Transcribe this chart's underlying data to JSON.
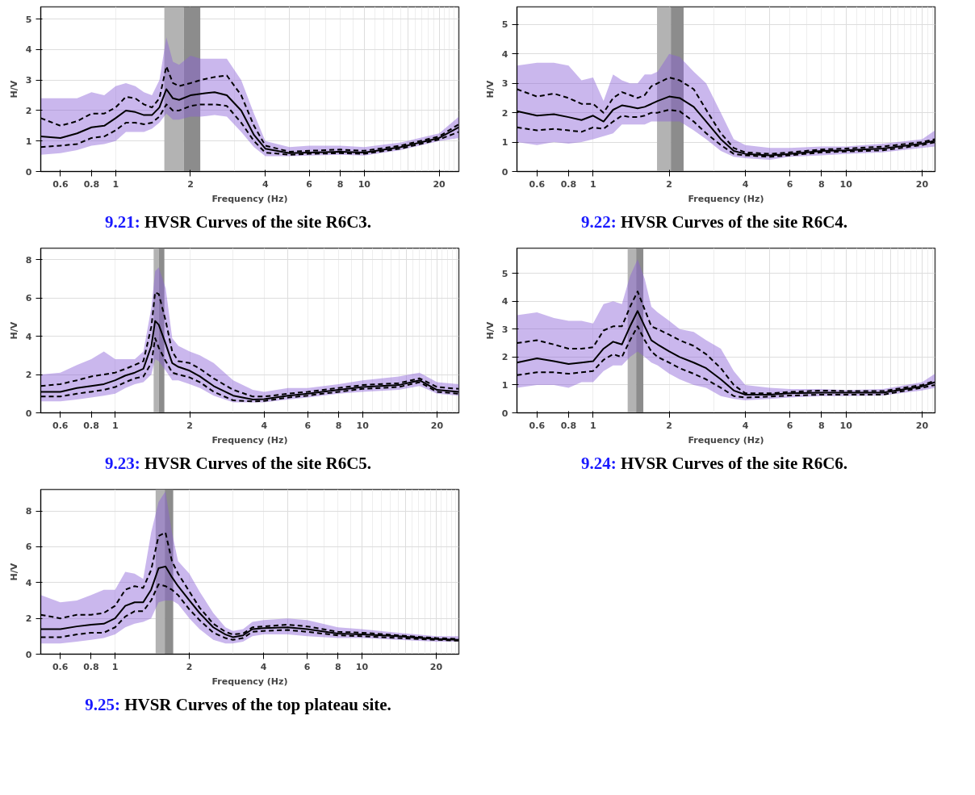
{
  "chart_data": [
    {
      "type": "line",
      "title": "9.21: HVSR Curves of the site R6C3.",
      "xlabel": "Frequency (Hz)",
      "ylabel": "H/V",
      "log": "x",
      "grid": true,
      "xlim": [
        0.5,
        24
      ],
      "ylim": [
        0,
        5.4
      ],
      "xticks": [
        0.6,
        0.8,
        1,
        2,
        4,
        6,
        8,
        10,
        20
      ],
      "yticks": [
        0,
        1,
        2,
        3,
        4,
        5
      ],
      "x": [
        0.5,
        0.6,
        0.7,
        0.8,
        0.9,
        1,
        1.1,
        1.2,
        1.3,
        1.4,
        1.5,
        1.6,
        1.7,
        1.8,
        2,
        2.2,
        2.5,
        2.8,
        3.2,
        3.6,
        4,
        5,
        6,
        8,
        10,
        14,
        20,
        24
      ],
      "bands": [
        {
          "axis": "x",
          "from": 1.57,
          "to": 1.88,
          "color": "#b3b3b3"
        },
        {
          "axis": "x",
          "from": 1.88,
          "to": 2.19,
          "color": "#8c8c8c"
        }
      ],
      "series": [
        {
          "color": "#000000",
          "line_style": "solid",
          "values": [
            1.15,
            1.1,
            1.25,
            1.45,
            1.5,
            1.75,
            2.0,
            1.95,
            1.85,
            1.85,
            2.1,
            2.7,
            2.4,
            2.35,
            2.5,
            2.55,
            2.6,
            2.5,
            2.0,
            1.2,
            0.75,
            0.6,
            0.62,
            0.65,
            0.62,
            0.8,
            1.1,
            1.45
          ],
          "lower": [
            0.55,
            0.6,
            0.7,
            0.85,
            0.9,
            1.0,
            1.3,
            1.3,
            1.3,
            1.4,
            1.6,
            1.9,
            1.7,
            1.7,
            1.8,
            1.8,
            1.85,
            1.8,
            1.3,
            0.8,
            0.5,
            0.5,
            0.52,
            0.55,
            0.52,
            0.7,
            1.0,
            1.1
          ],
          "upper": [
            2.4,
            2.4,
            2.4,
            2.6,
            2.5,
            2.8,
            2.9,
            2.8,
            2.6,
            2.5,
            3.0,
            4.4,
            3.6,
            3.5,
            3.8,
            3.7,
            3.7,
            3.7,
            3.0,
            1.9,
            1.0,
            0.8,
            0.85,
            0.85,
            0.8,
            0.95,
            1.25,
            1.8
          ]
        },
        {
          "color": "#000000",
          "line_style": "dashed",
          "values": [
            1.75,
            1.5,
            1.65,
            1.9,
            1.9,
            2.1,
            2.45,
            2.4,
            2.2,
            2.1,
            2.4,
            3.45,
            2.9,
            2.8,
            2.9,
            3.0,
            3.1,
            3.15,
            2.5,
            1.5,
            0.85,
            0.65,
            0.68,
            0.72,
            0.68,
            0.85,
            1.15,
            1.55
          ]
        },
        {
          "color": "#000000",
          "line_style": "dashed",
          "values": [
            0.8,
            0.85,
            0.9,
            1.1,
            1.15,
            1.35,
            1.6,
            1.6,
            1.55,
            1.6,
            1.8,
            2.2,
            2.0,
            2.0,
            2.15,
            2.2,
            2.2,
            2.15,
            1.6,
            1.0,
            0.62,
            0.55,
            0.58,
            0.6,
            0.58,
            0.75,
            1.05,
            1.3
          ]
        }
      ]
    },
    {
      "type": "line",
      "title": "9.22: HVSR Curves of the site R6C4.",
      "xlabel": "Frequency (Hz)",
      "ylabel": "H/V",
      "log": "x",
      "grid": true,
      "xlim": [
        0.5,
        22.5
      ],
      "ylim": [
        0,
        5.6
      ],
      "xticks": [
        0.6,
        0.8,
        1,
        2,
        4,
        6,
        8,
        10,
        20
      ],
      "yticks": [
        0,
        1,
        2,
        3,
        4,
        5
      ],
      "x": [
        0.5,
        0.6,
        0.7,
        0.8,
        0.9,
        1,
        1.1,
        1.2,
        1.3,
        1.4,
        1.5,
        1.6,
        1.7,
        1.8,
        2,
        2.2,
        2.5,
        2.8,
        3.2,
        3.6,
        4,
        5,
        6,
        8,
        10,
        14,
        20,
        22.5
      ],
      "bands": [
        {
          "axis": "x",
          "from": 1.79,
          "to": 2.03,
          "color": "#b3b3b3"
        },
        {
          "axis": "x",
          "from": 2.03,
          "to": 2.28,
          "color": "#8c8c8c"
        }
      ],
      "series": [
        {
          "color": "#000000",
          "line_style": "solid",
          "values": [
            2.05,
            1.9,
            1.95,
            1.85,
            1.75,
            1.9,
            1.7,
            2.1,
            2.25,
            2.2,
            2.15,
            2.2,
            2.3,
            2.4,
            2.55,
            2.5,
            2.2,
            1.7,
            1.1,
            0.7,
            0.6,
            0.55,
            0.6,
            0.7,
            0.72,
            0.78,
            0.95,
            1.05
          ],
          "lower": [
            1.0,
            0.9,
            1.0,
            0.95,
            1.0,
            1.1,
            1.2,
            1.3,
            1.6,
            1.6,
            1.6,
            1.6,
            1.7,
            1.7,
            1.7,
            1.7,
            1.4,
            1.1,
            0.7,
            0.5,
            0.45,
            0.4,
            0.5,
            0.55,
            0.6,
            0.65,
            0.8,
            0.85
          ],
          "upper": [
            3.6,
            3.7,
            3.7,
            3.6,
            3.1,
            3.2,
            2.4,
            3.3,
            3.1,
            3.0,
            3.0,
            3.3,
            3.3,
            3.4,
            4.0,
            3.9,
            3.4,
            3.0,
            2.0,
            1.1,
            0.9,
            0.8,
            0.8,
            0.85,
            0.85,
            0.95,
            1.1,
            1.4
          ]
        },
        {
          "color": "#000000",
          "line_style": "dashed",
          "values": [
            2.8,
            2.55,
            2.65,
            2.5,
            2.3,
            2.3,
            2.0,
            2.5,
            2.7,
            2.6,
            2.5,
            2.6,
            2.9,
            3.0,
            3.2,
            3.1,
            2.8,
            2.1,
            1.3,
            0.8,
            0.65,
            0.6,
            0.65,
            0.75,
            0.78,
            0.85,
            1.0,
            1.1
          ]
        },
        {
          "color": "#000000",
          "line_style": "dashed",
          "values": [
            1.5,
            1.4,
            1.45,
            1.4,
            1.35,
            1.5,
            1.45,
            1.7,
            1.9,
            1.85,
            1.85,
            1.9,
            2.0,
            2.0,
            2.1,
            2.05,
            1.7,
            1.3,
            0.9,
            0.6,
            0.55,
            0.5,
            0.55,
            0.65,
            0.68,
            0.72,
            0.9,
            1.0
          ]
        }
      ]
    },
    {
      "type": "line",
      "title": "9.23: HVSR Curves of the site R6C5.",
      "xlabel": "Frequency (Hz)",
      "ylabel": "H/V",
      "log": "x",
      "grid": true,
      "xlim": [
        0.5,
        24.5
      ],
      "ylim": [
        0,
        8.6
      ],
      "xticks": [
        0.6,
        0.8,
        1,
        2,
        4,
        6,
        8,
        10,
        20
      ],
      "yticks": [
        0,
        2,
        4,
        6,
        8
      ],
      "x": [
        0.5,
        0.6,
        0.7,
        0.8,
        0.9,
        1,
        1.1,
        1.2,
        1.3,
        1.4,
        1.45,
        1.5,
        1.6,
        1.7,
        1.8,
        2,
        2.2,
        2.5,
        3,
        3.6,
        4,
        5,
        6,
        8,
        10,
        14,
        17,
        20,
        24.5
      ],
      "bands": [
        {
          "axis": "x",
          "from": 1.43,
          "to": 1.5,
          "color": "#b3b3b3"
        },
        {
          "axis": "x",
          "from": 1.5,
          "to": 1.58,
          "color": "#8c8c8c"
        }
      ],
      "series": [
        {
          "color": "#000000",
          "line_style": "solid",
          "values": [
            1.1,
            1.1,
            1.3,
            1.4,
            1.5,
            1.7,
            1.95,
            2.1,
            2.3,
            3.5,
            4.8,
            4.6,
            3.6,
            2.6,
            2.4,
            2.2,
            1.9,
            1.4,
            0.9,
            0.7,
            0.72,
            0.9,
            1.0,
            1.2,
            1.35,
            1.45,
            1.7,
            1.2,
            1.1
          ],
          "lower": [
            0.6,
            0.6,
            0.7,
            0.8,
            0.9,
            1.0,
            1.3,
            1.5,
            1.6,
            2.0,
            2.8,
            2.7,
            2.2,
            1.7,
            1.7,
            1.5,
            1.3,
            0.9,
            0.55,
            0.55,
            0.55,
            0.7,
            0.8,
            1.0,
            1.1,
            1.2,
            1.4,
            1.0,
            0.9
          ],
          "upper": [
            2.0,
            2.1,
            2.5,
            2.8,
            3.2,
            2.8,
            2.8,
            2.8,
            3.2,
            5.5,
            7.4,
            7.6,
            6.5,
            3.9,
            3.5,
            3.2,
            3.0,
            2.6,
            1.7,
            1.2,
            1.1,
            1.3,
            1.3,
            1.5,
            1.7,
            1.9,
            2.1,
            1.6,
            1.5
          ]
        },
        {
          "color": "#000000",
          "line_style": "dashed",
          "values": [
            1.4,
            1.5,
            1.7,
            1.9,
            2.0,
            2.1,
            2.3,
            2.5,
            2.7,
            4.5,
            6.3,
            6.2,
            4.8,
            3.2,
            2.7,
            2.6,
            2.3,
            1.8,
            1.2,
            0.85,
            0.85,
            1.0,
            1.1,
            1.3,
            1.45,
            1.55,
            1.8,
            1.35,
            1.25
          ]
        },
        {
          "color": "#000000",
          "line_style": "dashed",
          "values": [
            0.85,
            0.85,
            1.0,
            1.1,
            1.2,
            1.35,
            1.6,
            1.8,
            1.9,
            2.6,
            3.9,
            3.4,
            2.7,
            2.1,
            2.0,
            1.85,
            1.6,
            1.1,
            0.65,
            0.6,
            0.62,
            0.8,
            0.9,
            1.1,
            1.25,
            1.35,
            1.6,
            1.1,
            1.0
          ]
        }
      ]
    },
    {
      "type": "line",
      "title": "9.24: HVSR Curves of the site R6C6.",
      "xlabel": "Frequency (Hz)",
      "ylabel": "H/V",
      "log": "x",
      "grid": true,
      "xlim": [
        0.5,
        22.5
      ],
      "ylim": [
        0,
        5.9
      ],
      "xticks": [
        0.6,
        0.8,
        1,
        2,
        4,
        6,
        8,
        10,
        20
      ],
      "yticks": [
        0,
        1,
        2,
        3,
        4,
        5
      ],
      "x": [
        0.5,
        0.6,
        0.7,
        0.8,
        0.9,
        1,
        1.1,
        1.2,
        1.3,
        1.4,
        1.5,
        1.6,
        1.7,
        1.8,
        2,
        2.2,
        2.5,
        2.8,
        3.2,
        3.6,
        4,
        5,
        6,
        8,
        10,
        14,
        20,
        22.5
      ],
      "bands": [
        {
          "axis": "x",
          "from": 1.37,
          "to": 1.48,
          "color": "#b3b3b3"
        },
        {
          "axis": "x",
          "from": 1.48,
          "to": 1.58,
          "color": "#8c8c8c"
        }
      ],
      "series": [
        {
          "color": "#000000",
          "line_style": "solid",
          "values": [
            1.8,
            1.95,
            1.85,
            1.75,
            1.8,
            1.85,
            2.3,
            2.55,
            2.45,
            3.1,
            3.65,
            3.1,
            2.6,
            2.45,
            2.2,
            2.0,
            1.8,
            1.6,
            1.2,
            0.8,
            0.65,
            0.65,
            0.7,
            0.72,
            0.72,
            0.72,
            0.95,
            1.1
          ],
          "lower": [
            0.9,
            1.0,
            1.0,
            0.9,
            1.1,
            1.1,
            1.5,
            1.7,
            1.7,
            2.0,
            2.2,
            2.0,
            1.8,
            1.7,
            1.4,
            1.2,
            1.0,
            0.9,
            0.6,
            0.5,
            0.45,
            0.5,
            0.55,
            0.6,
            0.6,
            0.62,
            0.8,
            0.9
          ],
          "upper": [
            3.5,
            3.6,
            3.4,
            3.3,
            3.3,
            3.2,
            3.9,
            4.0,
            3.9,
            4.9,
            5.5,
            4.8,
            3.8,
            3.6,
            3.3,
            3.0,
            2.9,
            2.6,
            2.3,
            1.5,
            1.0,
            0.9,
            0.85,
            0.85,
            0.82,
            0.85,
            1.1,
            1.4
          ]
        },
        {
          "color": "#000000",
          "line_style": "dashed",
          "values": [
            2.5,
            2.6,
            2.45,
            2.3,
            2.3,
            2.35,
            2.95,
            3.1,
            3.1,
            3.8,
            4.35,
            3.7,
            3.1,
            3.0,
            2.8,
            2.6,
            2.4,
            2.1,
            1.6,
            1.0,
            0.7,
            0.7,
            0.75,
            0.8,
            0.78,
            0.78,
            1.0,
            1.15
          ]
        },
        {
          "color": "#000000",
          "line_style": "dashed",
          "values": [
            1.35,
            1.45,
            1.45,
            1.4,
            1.45,
            1.5,
            1.9,
            2.1,
            2.0,
            2.6,
            3.1,
            2.6,
            2.2,
            2.0,
            1.8,
            1.6,
            1.4,
            1.2,
            0.9,
            0.6,
            0.55,
            0.58,
            0.62,
            0.65,
            0.65,
            0.65,
            0.9,
            1.0
          ]
        }
      ]
    },
    {
      "type": "line",
      "title": "9.25: HVSR Curves of the top plateau site.",
      "xlabel": "Frequency (Hz)",
      "ylabel": "H/V",
      "log": "x",
      "grid": true,
      "xlim": [
        0.5,
        24.7
      ],
      "ylim": [
        0,
        9.2
      ],
      "xticks": [
        0.6,
        0.8,
        1,
        2,
        4,
        6,
        8,
        10,
        20
      ],
      "yticks": [
        0,
        2,
        4,
        6,
        8
      ],
      "x": [
        0.5,
        0.6,
        0.7,
        0.8,
        0.9,
        1,
        1.1,
        1.2,
        1.3,
        1.4,
        1.5,
        1.6,
        1.7,
        1.8,
        2,
        2.2,
        2.5,
        2.8,
        3.0,
        3.3,
        3.6,
        4,
        5,
        6,
        8,
        10,
        14,
        20,
        24.7
      ],
      "bands": [
        {
          "axis": "x",
          "from": 1.46,
          "to": 1.59,
          "color": "#b3b3b3"
        },
        {
          "axis": "x",
          "from": 1.59,
          "to": 1.72,
          "color": "#8c8c8c"
        }
      ],
      "series": [
        {
          "color": "#000000",
          "line_style": "solid",
          "values": [
            1.4,
            1.4,
            1.55,
            1.65,
            1.7,
            2.0,
            2.7,
            2.9,
            2.9,
            3.6,
            4.8,
            4.9,
            4.3,
            3.8,
            3.0,
            2.3,
            1.5,
            1.1,
            0.95,
            1.05,
            1.4,
            1.45,
            1.5,
            1.4,
            1.15,
            1.1,
            1.0,
            0.85,
            0.8
          ],
          "lower": [
            0.6,
            0.6,
            0.7,
            0.8,
            0.9,
            1.1,
            1.5,
            1.7,
            1.8,
            2.0,
            2.9,
            3.0,
            3.0,
            2.8,
            2.0,
            1.4,
            0.8,
            0.6,
            0.6,
            0.7,
            1.0,
            1.1,
            1.1,
            1.0,
            0.9,
            0.9,
            0.8,
            0.7,
            0.7
          ],
          "upper": [
            3.3,
            2.9,
            3.0,
            3.3,
            3.6,
            3.6,
            4.6,
            4.5,
            4.2,
            6.8,
            8.5,
            9.1,
            6.8,
            5.2,
            4.5,
            3.5,
            2.3,
            1.5,
            1.3,
            1.4,
            1.8,
            1.9,
            2.0,
            1.9,
            1.5,
            1.4,
            1.2,
            1.0,
            1.0
          ]
        },
        {
          "color": "#000000",
          "line_style": "dashed",
          "values": [
            2.2,
            2.0,
            2.2,
            2.2,
            2.3,
            2.7,
            3.6,
            3.8,
            3.7,
            4.7,
            6.6,
            6.8,
            5.2,
            4.5,
            3.5,
            2.6,
            1.7,
            1.25,
            1.1,
            1.15,
            1.5,
            1.55,
            1.65,
            1.55,
            1.25,
            1.2,
            1.05,
            0.9,
            0.85
          ]
        },
        {
          "color": "#000000",
          "line_style": "dashed",
          "values": [
            0.95,
            0.95,
            1.1,
            1.2,
            1.2,
            1.5,
            2.1,
            2.4,
            2.4,
            3.0,
            3.9,
            3.8,
            3.6,
            3.3,
            2.5,
            1.9,
            1.2,
            0.9,
            0.8,
            0.9,
            1.25,
            1.3,
            1.35,
            1.25,
            1.05,
            1.0,
            0.9,
            0.8,
            0.75
          ]
        }
      ]
    }
  ]
}
